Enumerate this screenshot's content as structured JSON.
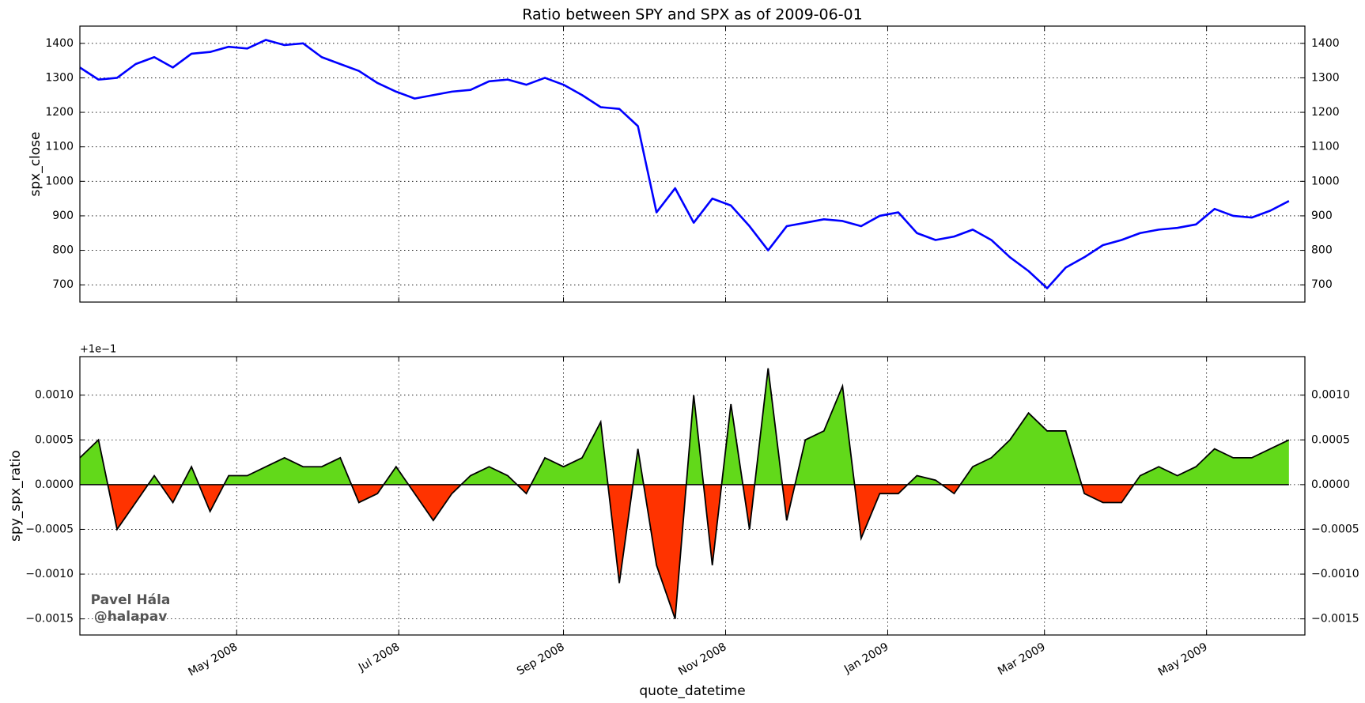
{
  "chart_data": [
    {
      "type": "line",
      "title": "Ratio between SPY and SPX as of 2009-06-01",
      "ylabel": "spx_close",
      "x": [
        "2008-03-03",
        "2008-03-10",
        "2008-03-17",
        "2008-03-24",
        "2008-03-31",
        "2008-04-07",
        "2008-04-14",
        "2008-04-21",
        "2008-04-28",
        "2008-05-05",
        "2008-05-12",
        "2008-05-19",
        "2008-05-26",
        "2008-06-02",
        "2008-06-09",
        "2008-06-16",
        "2008-06-23",
        "2008-06-30",
        "2008-07-07",
        "2008-07-14",
        "2008-07-21",
        "2008-07-28",
        "2008-08-04",
        "2008-08-11",
        "2008-08-18",
        "2008-08-25",
        "2008-09-01",
        "2008-09-08",
        "2008-09-15",
        "2008-09-22",
        "2008-09-29",
        "2008-10-06",
        "2008-10-13",
        "2008-10-20",
        "2008-10-27",
        "2008-11-03",
        "2008-11-10",
        "2008-11-17",
        "2008-11-24",
        "2008-12-01",
        "2008-12-08",
        "2008-12-15",
        "2008-12-22",
        "2008-12-29",
        "2009-01-05",
        "2009-01-12",
        "2009-01-19",
        "2009-01-26",
        "2009-02-02",
        "2009-02-09",
        "2009-02-16",
        "2009-02-23",
        "2009-03-02",
        "2009-03-09",
        "2009-03-16",
        "2009-03-23",
        "2009-03-30",
        "2009-04-06",
        "2009-04-13",
        "2009-04-20",
        "2009-04-27",
        "2009-05-04",
        "2009-05-11",
        "2009-05-18",
        "2009-05-25",
        "2009-06-01"
      ],
      "series": [
        {
          "name": "spx_close",
          "color": "#0000ff",
          "values": [
            1330,
            1295,
            1300,
            1340,
            1360,
            1330,
            1370,
            1375,
            1390,
            1385,
            1410,
            1395,
            1400,
            1360,
            1340,
            1320,
            1285,
            1260,
            1240,
            1250,
            1260,
            1265,
            1290,
            1295,
            1280,
            1300,
            1280,
            1250,
            1215,
            1210,
            1160,
            910,
            980,
            880,
            950,
            930,
            870,
            800,
            870,
            880,
            890,
            885,
            870,
            900,
            910,
            850,
            830,
            840,
            860,
            830,
            780,
            740,
            690,
            750,
            780,
            815,
            830,
            850,
            860,
            865,
            875,
            920,
            900,
            895,
            915,
            943
          ]
        }
      ],
      "xlim": [
        "2008-03-03",
        "2009-06-07"
      ],
      "xticks": [
        {
          "value": "2008-05-01",
          "label": "May 2008"
        },
        {
          "value": "2008-07-01",
          "label": "Jul 2008"
        },
        {
          "value": "2008-09-01",
          "label": "Sep 2008"
        },
        {
          "value": "2008-11-01",
          "label": "Nov 2008"
        },
        {
          "value": "2009-01-01",
          "label": "Jan 2009"
        },
        {
          "value": "2009-03-01",
          "label": "Mar 2009"
        },
        {
          "value": "2009-05-01",
          "label": "May 2009"
        }
      ],
      "ylim": [
        650,
        1450
      ],
      "yticks": [
        700,
        800,
        900,
        1000,
        1100,
        1200,
        1300,
        1400
      ],
      "grid": true
    },
    {
      "type": "area",
      "ylabel": "spy_spx_ratio",
      "xlabel": "quote_datetime",
      "offset_text": "+1e−1",
      "annotations": [
        "Pavel Hála",
        "@halapav"
      ],
      "x": [
        "2008-03-03",
        "2008-03-10",
        "2008-03-17",
        "2008-03-24",
        "2008-03-31",
        "2008-04-07",
        "2008-04-14",
        "2008-04-21",
        "2008-04-28",
        "2008-05-05",
        "2008-05-12",
        "2008-05-19",
        "2008-05-26",
        "2008-06-02",
        "2008-06-09",
        "2008-06-16",
        "2008-06-23",
        "2008-06-30",
        "2008-07-07",
        "2008-07-14",
        "2008-07-21",
        "2008-07-28",
        "2008-08-04",
        "2008-08-11",
        "2008-08-18",
        "2008-08-25",
        "2008-09-01",
        "2008-09-08",
        "2008-09-15",
        "2008-09-22",
        "2008-09-29",
        "2008-10-06",
        "2008-10-13",
        "2008-10-20",
        "2008-10-27",
        "2008-11-03",
        "2008-11-10",
        "2008-11-17",
        "2008-11-24",
        "2008-12-01",
        "2008-12-08",
        "2008-12-15",
        "2008-12-22",
        "2008-12-29",
        "2009-01-05",
        "2009-01-12",
        "2009-01-19",
        "2009-01-26",
        "2009-02-02",
        "2009-02-09",
        "2009-02-16",
        "2009-02-23",
        "2009-03-02",
        "2009-03-09",
        "2009-03-16",
        "2009-03-23",
        "2009-03-30",
        "2009-04-06",
        "2009-04-13",
        "2009-04-20",
        "2009-04-27",
        "2009-05-04",
        "2009-05-11",
        "2009-05-18",
        "2009-05-25",
        "2009-06-01"
      ],
      "series": [
        {
          "name": "spy_spx_ratio",
          "color": "#000000",
          "positive_color": "#62d91a",
          "negative_color": "#ff3300",
          "values": [
            0.0003,
            0.0005,
            -0.0005,
            -0.0002,
            0.0001,
            -0.0002,
            0.0002,
            -0.0003,
            0.0001,
            0.0001,
            0.0002,
            0.0003,
            0.0002,
            0.0002,
            0.0003,
            -0.0002,
            -0.0001,
            0.0002,
            -0.0001,
            -0.0004,
            -0.0001,
            0.0001,
            0.0002,
            0.0001,
            -0.0001,
            0.0003,
            0.0002,
            0.0003,
            0.0007,
            -0.0011,
            0.0004,
            -0.0009,
            -0.0015,
            0.001,
            -0.0009,
            0.0009,
            -0.0005,
            0.0013,
            -0.0004,
            0.0005,
            0.0006,
            0.0011,
            -0.0006,
            -0.0001,
            -0.0001,
            0.0001,
            5e-05,
            -0.0001,
            0.0002,
            0.0003,
            0.0005,
            0.0008,
            0.0006,
            0.0006,
            -0.0001,
            -0.0002,
            -0.0002,
            0.0001,
            0.0002,
            0.0001,
            0.0002,
            0.0004,
            0.0003,
            0.0003,
            0.0004,
            0.0005
          ]
        }
      ],
      "xlim": [
        "2008-03-03",
        "2009-06-07"
      ],
      "xticks": [
        {
          "value": "2008-05-01",
          "label": "May 2008"
        },
        {
          "value": "2008-07-01",
          "label": "Jul 2008"
        },
        {
          "value": "2008-09-01",
          "label": "Sep 2008"
        },
        {
          "value": "2008-11-01",
          "label": "Nov 2008"
        },
        {
          "value": "2009-01-01",
          "label": "Jan 2009"
        },
        {
          "value": "2009-03-01",
          "label": "Mar 2009"
        },
        {
          "value": "2009-05-01",
          "label": "May 2009"
        }
      ],
      "ylim": [
        -0.00168,
        0.00143
      ],
      "yticks": [
        {
          "value": -0.0015,
          "label": "−0.0015"
        },
        {
          "value": -0.001,
          "label": "−0.0010"
        },
        {
          "value": -0.0005,
          "label": "−0.0005"
        },
        {
          "value": 0,
          "label": "0.0000"
        },
        {
          "value": 0.0005,
          "label": "0.0005"
        },
        {
          "value": 0.001,
          "label": "0.0010"
        }
      ],
      "grid": true
    }
  ]
}
